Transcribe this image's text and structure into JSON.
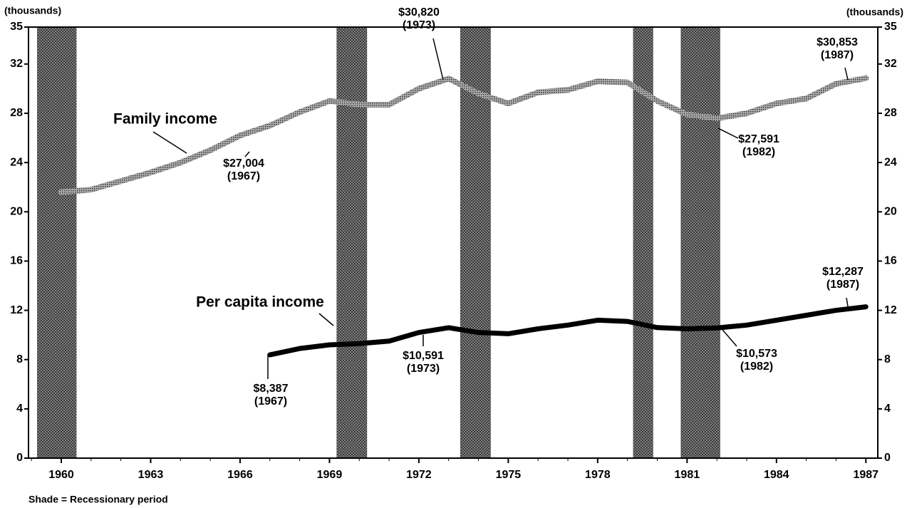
{
  "chart_data": {
    "type": "line",
    "y_label": "(thousands)",
    "y2_label": "(thousands)",
    "note": "Shade = Recessionary period",
    "x": [
      1960,
      1961,
      1962,
      1963,
      1964,
      1965,
      1966,
      1967,
      1968,
      1969,
      1970,
      1971,
      1972,
      1973,
      1974,
      1975,
      1976,
      1977,
      1978,
      1979,
      1980,
      1981,
      1982,
      1983,
      1984,
      1985,
      1986,
      1987
    ],
    "series": [
      {
        "name": "Family income",
        "color": "#6e6e6e",
        "values": [
          21.6,
          21.8,
          22.5,
          23.2,
          24.0,
          25.0,
          26.2,
          27.004,
          28.1,
          29.0,
          28.7,
          28.7,
          30.0,
          30.82,
          29.6,
          28.8,
          29.7,
          29.9,
          30.6,
          30.5,
          29.0,
          27.9,
          27.591,
          28.0,
          28.8,
          29.2,
          30.4,
          30.853
        ]
      },
      {
        "name": "Per capita income",
        "color": "#000000",
        "values": [
          null,
          null,
          null,
          null,
          null,
          null,
          null,
          8.387,
          8.9,
          9.2,
          9.3,
          9.5,
          10.2,
          10.591,
          10.2,
          10.1,
          10.5,
          10.8,
          11.2,
          11.1,
          10.6,
          10.5,
          10.573,
          10.8,
          11.2,
          11.6,
          12.0,
          12.287
        ]
      }
    ],
    "recessions": [
      [
        1959.2,
        1960.5
      ],
      [
        1969.25,
        1970.25
      ],
      [
        1973.4,
        1974.4
      ],
      [
        1979.2,
        1979.85
      ],
      [
        1980.8,
        1982.1
      ]
    ],
    "recession_color": "#555555",
    "annotations": [
      {
        "label": "$27,004",
        "sub": "(1967)"
      },
      {
        "label": "$30,820",
        "sub": "(1973)"
      },
      {
        "label": "$27,591",
        "sub": "(1982)"
      },
      {
        "label": "$30,853",
        "sub": "(1987)"
      },
      {
        "label": "$12,287",
        "sub": "(1987)"
      },
      {
        "label": "$10,591",
        "sub": "(1973)"
      },
      {
        "label": "$10,573",
        "sub": "(1982)"
      },
      {
        "label": "$8,387",
        "sub": "(1967)"
      }
    ],
    "xlim": [
      1958.9,
      1987.4
    ],
    "xticks": [
      1960,
      1963,
      1966,
      1969,
      1972,
      1975,
      1978,
      1981,
      1984,
      1987
    ],
    "ylim": [
      0,
      35
    ],
    "yticks": [
      0,
      4,
      8,
      12,
      16,
      20,
      24,
      28,
      32,
      35
    ],
    "y2lim": [
      0,
      35
    ],
    "y2ticks": [
      0,
      4,
      8,
      12,
      16,
      20,
      24,
      28,
      32,
      35
    ]
  }
}
